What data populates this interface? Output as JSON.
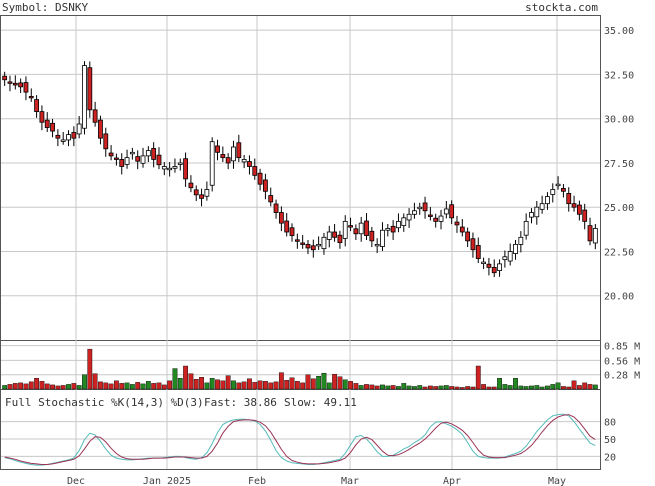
{
  "header": {
    "symbol_label": "Symbol: DSNKY",
    "brand": "stockta.com"
  },
  "colors": {
    "up": "#ffffff",
    "down": "#cc2222",
    "vol_up": "#228822",
    "vol_down": "#cc2222",
    "fast": "#55bbbb",
    "slow": "#993355",
    "grid": "#c8c8c8"
  },
  "stochastic": {
    "title": "Full Stochastic %K(14,3) %D(3)",
    "fast_label": "Fast: 38.86",
    "slow_label": "Slow: 49.11",
    "levels": [
      "80",
      "50",
      "20"
    ]
  },
  "chart_data": [
    {
      "type": "candlestick",
      "y_ticks": [
        "35.00",
        "32.50",
        "30.00",
        "27.50",
        "25.00",
        "22.50",
        "20.00"
      ],
      "ylim": [
        17.5,
        35.8
      ],
      "x_labels": [
        "Dec",
        "Jan 2025",
        "Feb",
        "Mar",
        "Apr",
        "May"
      ],
      "close": [
        32.2,
        32.0,
        31.9,
        31.8,
        31.5,
        31.2,
        30.4,
        29.8,
        29.5,
        29.3,
        28.9,
        28.8,
        29.1,
        28.9,
        29.7,
        33.0,
        30.5,
        29.8,
        28.9,
        28.3,
        27.9,
        27.7,
        27.3,
        27.8,
        28.1,
        27.6,
        27.9,
        28.2,
        27.7,
        27.4,
        27.3,
        27.2,
        27.3,
        27.5,
        26.6,
        26.1,
        25.7,
        25.5,
        26.0,
        28.7,
        28.1,
        27.8,
        27.5,
        28.4,
        27.8,
        27.7,
        27.3,
        26.8,
        26.3,
        25.9,
        25.3,
        24.7,
        24.1,
        23.6,
        23.4,
        23.1,
        22.9,
        22.7,
        22.6,
        22.9,
        23.3,
        23.6,
        23.3,
        23.0,
        24.2,
        23.9,
        23.5,
        24.1,
        23.4,
        23.1,
        22.9,
        23.7,
        23.8,
        23.6,
        24.2,
        24.4,
        24.6,
        24.8,
        25.0,
        24.8,
        24.5,
        24.2,
        24.5,
        24.9,
        24.4,
        24.0,
        23.6,
        23.1,
        22.6,
        22.1,
        21.9,
        21.6,
        21.3,
        21.8,
        22.2,
        22.5,
        22.9,
        23.3,
        24.2,
        24.7,
        25.0,
        25.2,
        25.6,
        26.0,
        26.3,
        25.9,
        25.2,
        25.0,
        24.6,
        24.2,
        23.1,
        23.8
      ]
    },
    {
      "type": "bar",
      "y_ticks": [
        "0.85 M",
        "0.56 M",
        "0.28 M"
      ],
      "volume": [
        0.07,
        0.09,
        0.11,
        0.12,
        0.1,
        0.14,
        0.21,
        0.15,
        0.1,
        0.08,
        0.06,
        0.07,
        0.09,
        0.11,
        0.07,
        0.28,
        0.78,
        0.3,
        0.14,
        0.12,
        0.1,
        0.16,
        0.11,
        0.12,
        0.09,
        0.13,
        0.1,
        0.15,
        0.11,
        0.12,
        0.08,
        0.16,
        0.4,
        0.21,
        0.45,
        0.3,
        0.19,
        0.23,
        0.12,
        0.21,
        0.18,
        0.16,
        0.26,
        0.16,
        0.12,
        0.14,
        0.2,
        0.13,
        0.16,
        0.15,
        0.12,
        0.14,
        0.32,
        0.17,
        0.22,
        0.15,
        0.12,
        0.28,
        0.2,
        0.25,
        0.31,
        0.12,
        0.29,
        0.24,
        0.18,
        0.15,
        0.11,
        0.07,
        0.09,
        0.08,
        0.06,
        0.08,
        0.06,
        0.07,
        0.05,
        0.11,
        0.06,
        0.05,
        0.07,
        0.04,
        0.06,
        0.05,
        0.06,
        0.07,
        0.05,
        0.04,
        0.03,
        0.05,
        0.04,
        0.45,
        0.09,
        0.04,
        0.04,
        0.21,
        0.09,
        0.07,
        0.21,
        0.06,
        0.05,
        0.06,
        0.07,
        0.04,
        0.06,
        0.09,
        0.12,
        0.05,
        0.04,
        0.16,
        0.07,
        0.12,
        0.09,
        0.08
      ]
    },
    {
      "type": "line",
      "series": [
        {
          "values": [
            18,
            16,
            13,
            10,
            8,
            6,
            5,
            5,
            6,
            8,
            10,
            12,
            14,
            17,
            30,
            49,
            60,
            57,
            46,
            33,
            22,
            17,
            15,
            14,
            14,
            15,
            16,
            17,
            17,
            17,
            18,
            19,
            20,
            20,
            18,
            16,
            15,
            18,
            26,
            42,
            61,
            75,
            80,
            83,
            84,
            84,
            83,
            81,
            75,
            64,
            48,
            30,
            18,
            12,
            9,
            8,
            7,
            6,
            6,
            7,
            9,
            11,
            13,
            15,
            25,
            40,
            54,
            56,
            50,
            40,
            28,
            20,
            20,
            22,
            27,
            33,
            37,
            44,
            49,
            57,
            71,
            79,
            80,
            76,
            72,
            66,
            58,
            44,
            29,
            20,
            18,
            17,
            17,
            17,
            19,
            22,
            25,
            29,
            38,
            50,
            63,
            73,
            83,
            90,
            92,
            93,
            90,
            80,
            67,
            55,
            43,
            39
          ]
        },
        {
          "values": [
            19,
            17,
            15,
            12,
            10,
            8,
            7,
            6,
            6,
            7,
            9,
            11,
            13,
            15,
            21,
            33,
            46,
            54,
            53,
            45,
            34,
            25,
            19,
            16,
            15,
            15,
            15,
            16,
            17,
            17,
            17,
            18,
            19,
            19,
            19,
            18,
            17,
            17,
            20,
            29,
            43,
            60,
            72,
            80,
            82,
            83,
            83,
            82,
            79,
            73,
            62,
            47,
            32,
            20,
            13,
            10,
            8,
            7,
            7,
            7,
            8,
            9,
            11,
            13,
            17,
            27,
            40,
            50,
            53,
            49,
            39,
            29,
            22,
            21,
            23,
            27,
            32,
            38,
            43,
            50,
            59,
            69,
            77,
            79,
            76,
            71,
            65,
            56,
            44,
            31,
            22,
            19,
            18,
            18,
            18,
            20,
            22,
            25,
            31,
            39,
            50,
            62,
            73,
            82,
            88,
            91,
            92,
            88,
            79,
            67,
            55,
            49
          ]
        }
      ]
    }
  ]
}
